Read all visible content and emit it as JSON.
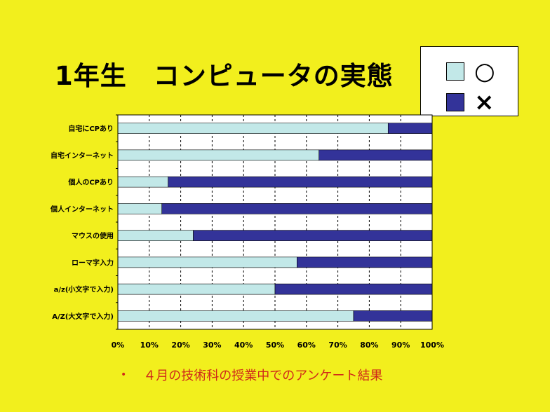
{
  "title": "1年生　コンピュータの実態",
  "legend": [
    {
      "label": "○",
      "color": "#c2e8e8"
    },
    {
      "label": "×",
      "color": "#333399"
    }
  ],
  "caption": {
    "bullet": "•",
    "text": "４月の技術科の授業中でのアンケート結果"
  },
  "chart_data": {
    "type": "bar",
    "orientation": "horizontal",
    "stacked": true,
    "percent": true,
    "categories": [
      "自宅にCPあり",
      "自宅インターネット",
      "個人のCPあり",
      "個人インターネット",
      "マウスの使用",
      "ローマ字入力",
      "a/z(小文字で入力)",
      "A/Z(大文字で入力)"
    ],
    "series": [
      {
        "name": "○",
        "values": [
          86,
          64,
          16,
          14,
          24,
          57,
          50,
          75
        ]
      },
      {
        "name": "×",
        "values": [
          14,
          36,
          84,
          86,
          76,
          43,
          50,
          25
        ]
      }
    ],
    "xlim": [
      0,
      100
    ],
    "x_ticks": [
      "0%",
      "10%",
      "20%",
      "30%",
      "40%",
      "50%",
      "60%",
      "70%",
      "80%",
      "90%",
      "100%"
    ],
    "grid": true,
    "legend_position": "top-right",
    "colors": {
      "plot_bg": "#ffffff",
      "grid": "#000000",
      "bar_o": "#c2e8e8",
      "bar_x": "#333399"
    }
  }
}
